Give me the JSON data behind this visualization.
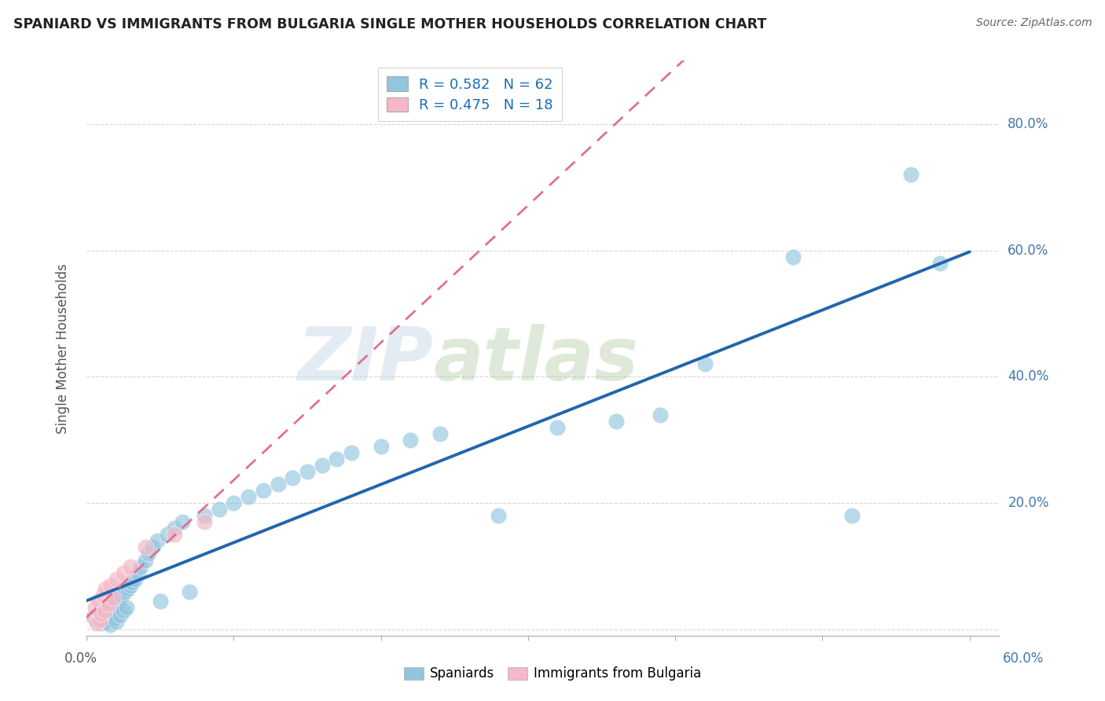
{
  "title": "SPANIARD VS IMMIGRANTS FROM BULGARIA SINGLE MOTHER HOUSEHOLDS CORRELATION CHART",
  "source": "Source: ZipAtlas.com",
  "ylabel": "Single Mother Households",
  "legend_blue_r": "R = 0.582",
  "legend_blue_n": "N = 62",
  "legend_pink_r": "R = 0.475",
  "legend_pink_n": "N = 18",
  "blue_color": "#92c5de",
  "pink_color": "#f4b8c8",
  "blue_line_color": "#2166ac",
  "pink_line_color": "#e07090",
  "watermark_zip": "ZIP",
  "watermark_atlas": "atlas",
  "xlim": [
    0.0,
    0.62
  ],
  "ylim": [
    -0.01,
    0.9
  ],
  "blue_scatter_x": [
    0.005,
    0.007,
    0.008,
    0.01,
    0.01,
    0.011,
    0.012,
    0.013,
    0.014,
    0.015,
    0.015,
    0.016,
    0.017,
    0.018,
    0.019,
    0.02,
    0.02,
    0.021,
    0.022,
    0.023,
    0.024,
    0.025,
    0.026,
    0.027,
    0.028,
    0.03,
    0.031,
    0.033,
    0.035,
    0.037,
    0.04,
    0.042,
    0.045,
    0.048,
    0.05,
    0.055,
    0.06,
    0.065,
    0.07,
    0.08,
    0.09,
    0.1,
    0.11,
    0.12,
    0.13,
    0.14,
    0.15,
    0.16,
    0.17,
    0.18,
    0.2,
    0.22,
    0.24,
    0.28,
    0.32,
    0.36,
    0.39,
    0.42,
    0.48,
    0.52,
    0.56,
    0.58
  ],
  "blue_scatter_y": [
    0.02,
    0.015,
    0.025,
    0.01,
    0.03,
    0.018,
    0.022,
    0.012,
    0.028,
    0.016,
    0.035,
    0.008,
    0.04,
    0.025,
    0.018,
    0.045,
    0.012,
    0.038,
    0.05,
    0.022,
    0.055,
    0.03,
    0.06,
    0.035,
    0.065,
    0.07,
    0.075,
    0.08,
    0.09,
    0.1,
    0.11,
    0.12,
    0.13,
    0.14,
    0.045,
    0.15,
    0.16,
    0.17,
    0.06,
    0.18,
    0.19,
    0.2,
    0.21,
    0.22,
    0.23,
    0.24,
    0.25,
    0.26,
    0.27,
    0.28,
    0.29,
    0.3,
    0.31,
    0.18,
    0.32,
    0.33,
    0.34,
    0.42,
    0.59,
    0.18,
    0.72,
    0.58
  ],
  "pink_scatter_x": [
    0.005,
    0.006,
    0.007,
    0.008,
    0.009,
    0.01,
    0.011,
    0.012,
    0.013,
    0.015,
    0.016,
    0.018,
    0.02,
    0.025,
    0.03,
    0.04,
    0.06,
    0.08
  ],
  "pink_scatter_y": [
    0.02,
    0.035,
    0.01,
    0.045,
    0.015,
    0.025,
    0.055,
    0.03,
    0.065,
    0.04,
    0.07,
    0.05,
    0.08,
    0.09,
    0.1,
    0.13,
    0.15,
    0.17
  ]
}
